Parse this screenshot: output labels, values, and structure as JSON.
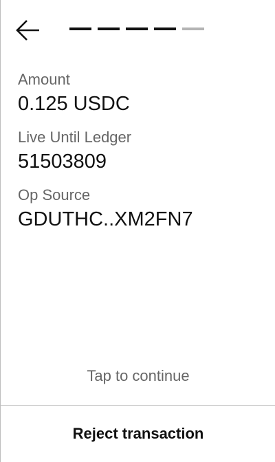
{
  "header": {
    "back_icon": "arrow-left-icon",
    "progress": {
      "total_steps": 5,
      "completed_steps": 4,
      "active_color": "#111111",
      "inactive_color": "#b4b4b4"
    }
  },
  "fields": [
    {
      "label": "Amount",
      "value": "0.125 USDC"
    },
    {
      "label": "Live Until Ledger",
      "value": "51503809"
    },
    {
      "label": "Op Source",
      "value": "GDUTHC..XM2FN7"
    }
  ],
  "footer": {
    "tap_hint": "Tap to continue",
    "reject_label": "Reject transaction"
  }
}
